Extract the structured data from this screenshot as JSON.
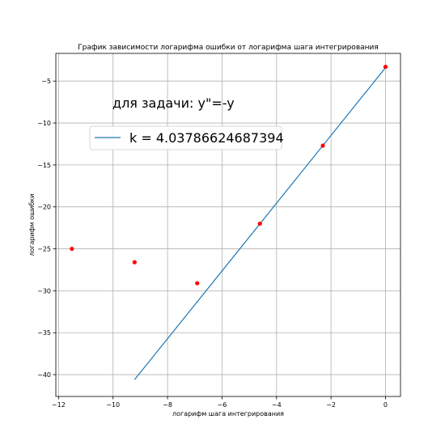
{
  "chart_data": {
    "type": "scatter",
    "title": "График зависимости логарифма ошибки от логарифма шага интегрирования",
    "xlabel": "логарифм шага интегрирования",
    "ylabel": "логарифм ошибки",
    "xlim": [
      -12.1,
      0.55
    ],
    "ylim": [
      -42.6,
      -1.7
    ],
    "xticks": [
      -12,
      -10,
      -8,
      -6,
      -4,
      -2,
      0
    ],
    "yticks": [
      -40,
      -35,
      -30,
      -25,
      -20,
      -15,
      -10,
      -5
    ],
    "grid": true,
    "annotation": "для задачи:  y\"=-y",
    "legend": {
      "placement": "upper-left",
      "label": "k = 4.03786624687394"
    },
    "points": {
      "color": "#ff0000",
      "x": [
        -11.51,
        -9.21,
        -6.91,
        -4.61,
        -2.3,
        0.0
      ],
      "y": [
        -25.0,
        -26.6,
        -29.1,
        -22.0,
        -12.7,
        -3.3
      ]
    },
    "fit_line": {
      "color": "#1f77b4",
      "x": [
        -9.21,
        0.0
      ],
      "y": [
        -40.6,
        -3.4
      ]
    }
  }
}
